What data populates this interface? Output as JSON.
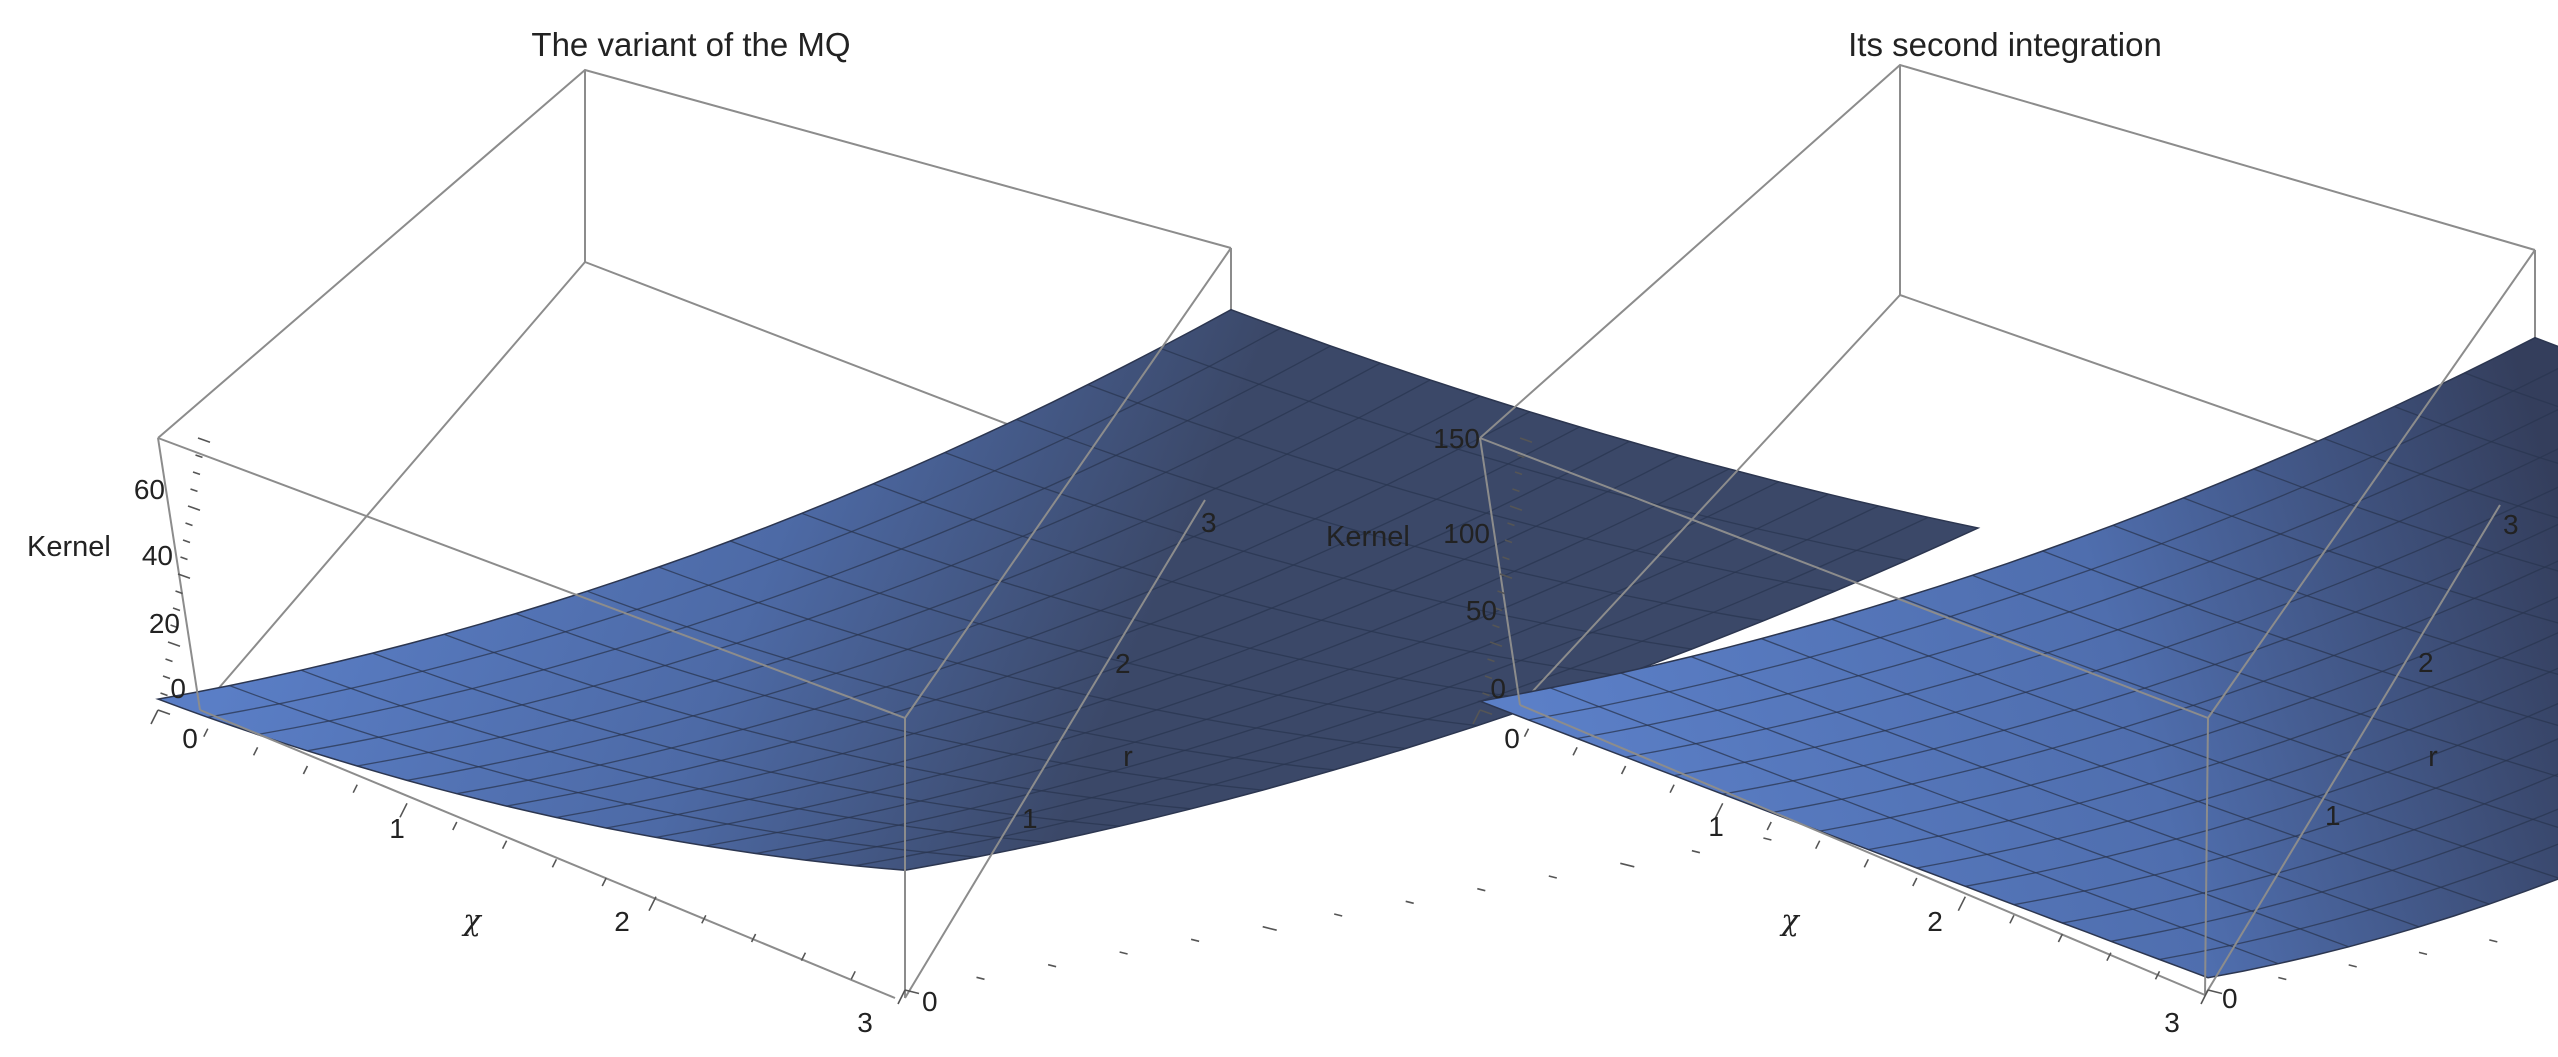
{
  "chart_data": [
    {
      "type": "surface3d",
      "title": "The variant of the MQ",
      "xlabel": "χ",
      "ylabel": "r",
      "zlabel": "Kernel",
      "x_ticks": [
        "0",
        "1",
        "2",
        "3"
      ],
      "y_ticks": [
        "0",
        "1",
        "2",
        "3"
      ],
      "z_ticks": [
        "0",
        "20",
        "40",
        "60"
      ],
      "xlim": [
        0,
        3
      ],
      "ylim": [
        0,
        3
      ],
      "zlim": [
        -3,
        72
      ],
      "mesh": 15,
      "surface_color": "#5b7fc7",
      "corner_values": {
        "x0_r0": 0,
        "x3_r0": 30,
        "x0_r3": 55,
        "x3_r3": 72
      }
    },
    {
      "type": "surface3d",
      "title": "Its second integration",
      "xlabel": "χ",
      "ylabel": "r",
      "zlabel": "Kernel",
      "x_ticks": [
        "0",
        "1",
        "2",
        "3"
      ],
      "y_ticks": [
        "0",
        "1",
        "2",
        "3"
      ],
      "z_ticks": [
        "0",
        "50",
        "100",
        "150"
      ],
      "xlim": [
        0,
        3
      ],
      "ylim": [
        0,
        3
      ],
      "zlim": [
        -5,
        150
      ],
      "mesh": 15,
      "surface_color": "#5b7fc7",
      "corner_values": {
        "x0_r0": 0,
        "x3_r0": 2,
        "x0_r3": 100,
        "x3_r3": 190
      }
    }
  ]
}
